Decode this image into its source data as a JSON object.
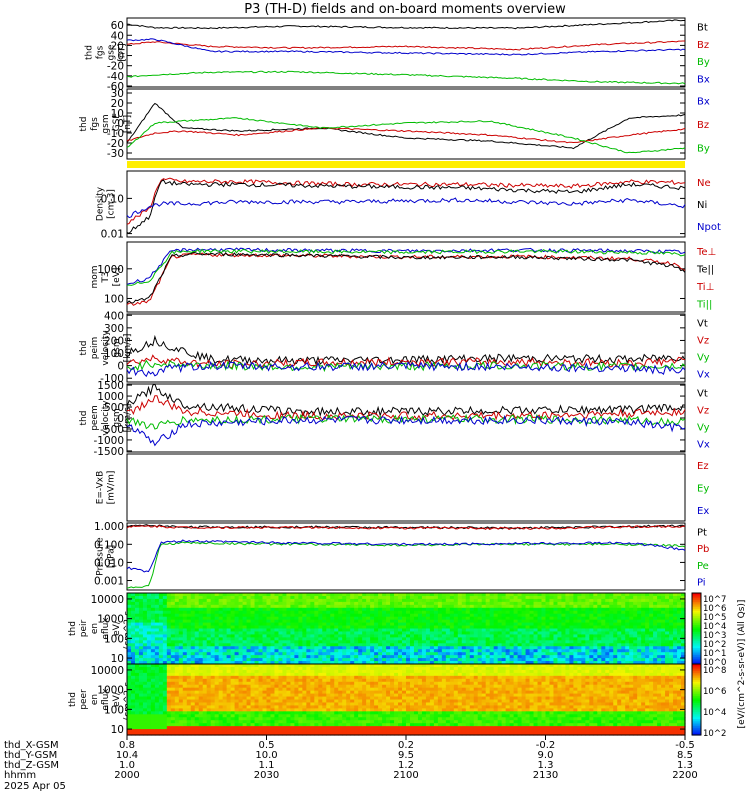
{
  "title": "P3 (TH-D) fields and on-board moments overview",
  "chart_data": {
    "type": "line",
    "title": "P3 (TH-D) fields and on-board moments overview",
    "panels": [
      {
        "id": "fgs_gse",
        "ylabel": [
          "thd",
          "fgs",
          "gse",
          "[nT]"
        ],
        "yticks": [
          "60",
          "40",
          "20",
          "0",
          "-20",
          "-40",
          "-60"
        ],
        "tick_values": [
          60,
          40,
          20,
          0,
          -20,
          -40,
          -60
        ],
        "ylim": [
          -62,
          74
        ],
        "scale": "linear",
        "series": [
          {
            "name": "Bt",
            "color": "#000000",
            "x": [
              0,
              0.05,
              0.15,
              0.3,
              0.5,
              0.7,
              0.85,
              1
            ],
            "y": [
              62,
              55,
              54,
              58,
              55,
              54,
              62,
              70
            ]
          },
          {
            "name": "Bz",
            "color": "#cc0000",
            "x": [
              0,
              0.05,
              0.15,
              0.3,
              0.5,
              0.7,
              0.85,
              1
            ],
            "y": [
              22,
              27,
              18,
              15,
              18,
              12,
              22,
              28
            ]
          },
          {
            "name": "By",
            "color": "#00bb00",
            "x": [
              0,
              0.05,
              0.15,
              0.3,
              0.5,
              0.7,
              0.85,
              1
            ],
            "y": [
              -42,
              -38,
              -33,
              -32,
              -38,
              -45,
              -52,
              -55
            ]
          },
          {
            "name": "Bx",
            "color": "#0000cc",
            "x": [
              0,
              0.05,
              0.15,
              0.3,
              0.5,
              0.7,
              0.85,
              1
            ],
            "y": [
              30,
              32,
              8,
              8,
              5,
              2,
              8,
              12
            ]
          }
        ]
      },
      {
        "id": "fgs_gsm",
        "ylabel": [
          "thd",
          "fgs",
          "gsm",
          "-GSE",
          "[nT]"
        ],
        "yticks": [
          "30",
          "20",
          "10",
          "0",
          "-10",
          "-20",
          "-30"
        ],
        "tick_values": [
          30,
          20,
          10,
          0,
          -10,
          -20,
          -30
        ],
        "ylim": [
          -36,
          34
        ],
        "scale": "linear",
        "series": [
          {
            "name": "Bx",
            "color": "#000000",
            "x": [
              0,
              0.05,
              0.1,
              0.2,
              0.35,
              0.5,
              0.65,
              0.8,
              0.9,
              1
            ],
            "y": [
              -20,
              20,
              -5,
              -8,
              -5,
              -15,
              -18,
              -25,
              5,
              8
            ]
          },
          {
            "name": "Bz",
            "color": "#cc0000",
            "x": [
              0,
              0.05,
              0.1,
              0.2,
              0.35,
              0.5,
              0.65,
              0.8,
              0.9,
              1
            ],
            "y": [
              -18,
              -10,
              -8,
              -12,
              -5,
              -8,
              -12,
              -20,
              -12,
              -6
            ]
          },
          {
            "name": "By",
            "color": "#00bb00",
            "x": [
              0,
              0.05,
              0.1,
              0.2,
              0.35,
              0.5,
              0.65,
              0.8,
              0.9,
              1
            ],
            "y": [
              -25,
              0,
              2,
              5,
              -5,
              0,
              2,
              -15,
              -30,
              -25
            ]
          }
        ]
      },
      {
        "id": "density",
        "ylabel": [
          "Density",
          "[cm-3]"
        ],
        "yticks": [
          "0.10",
          "0.01"
        ],
        "tick_values": [
          0.1,
          0.01
        ],
        "ylim": [
          0.008,
          0.6
        ],
        "scale": "log",
        "series": [
          {
            "name": "Ne",
            "color": "#cc0000",
            "x": [
              0,
              0.04,
              0.06,
              0.1,
              0.2,
              0.4,
              0.6,
              0.8,
              0.9,
              1
            ],
            "y": [
              0.02,
              0.05,
              0.35,
              0.3,
              0.3,
              0.25,
              0.25,
              0.22,
              0.3,
              0.28
            ]
          },
          {
            "name": "Ni",
            "color": "#000000",
            "x": [
              0,
              0.04,
              0.06,
              0.1,
              0.2,
              0.4,
              0.6,
              0.8,
              0.9,
              1
            ],
            "y": [
              0.01,
              0.03,
              0.3,
              0.25,
              0.25,
              0.22,
              0.2,
              0.15,
              0.25,
              0.2
            ]
          },
          {
            "name": "Npot",
            "color": "#0000cc",
            "x": [
              0,
              0.04,
              0.06,
              0.1,
              0.2,
              0.4,
              0.6,
              0.8,
              0.9,
              1
            ],
            "y": [
              0.03,
              0.06,
              0.07,
              0.07,
              0.08,
              0.08,
              0.09,
              0.07,
              0.09,
              0.06
            ]
          }
        ]
      },
      {
        "id": "temperature",
        "ylabel": [
          "mom",
          "T3",
          "[eV]"
        ],
        "yticks": [
          "1000",
          "100"
        ],
        "tick_values": [
          1000,
          100
        ],
        "ylim": [
          35,
          8000
        ],
        "scale": "log",
        "series": [
          {
            "name": "Te⊥",
            "color": "#cc0000",
            "x": [
              0,
              0.04,
              0.08,
              0.12,
              0.3,
              0.5,
              0.7,
              0.9,
              0.98,
              1
            ],
            "y": [
              60,
              80,
              2500,
              3000,
              2800,
              2500,
              2600,
              2200,
              1500,
              1000
            ]
          },
          {
            "name": "Te||",
            "color": "#000000",
            "x": [
              0,
              0.04,
              0.08,
              0.12,
              0.3,
              0.5,
              0.7,
              0.9,
              0.98,
              1
            ],
            "y": [
              70,
              100,
              2600,
              3200,
              2900,
              2400,
              2500,
              2000,
              1200,
              800
            ]
          },
          {
            "name": "Ti⊥",
            "color": "#0000cc",
            "x": [
              0,
              0.04,
              0.08,
              0.12,
              0.3,
              0.5,
              0.7,
              0.9,
              0.98,
              1
            ],
            "y": [
              300,
              500,
              4000,
              4500,
              4200,
              4000,
              4300,
              4000,
              3800,
              3500
            ]
          },
          {
            "name": "Ti||",
            "color": "#00bb00",
            "x": [
              0,
              0.04,
              0.08,
              0.12,
              0.3,
              0.5,
              0.7,
              0.9,
              0.98,
              1
            ],
            "y": [
              250,
              400,
              3500,
              4000,
              3800,
              3600,
              3900,
              3600,
              3200,
              3000
            ]
          }
        ]
      },
      {
        "id": "peim_velocity",
        "ylabel": [
          "thd",
          "peim",
          "velocity",
          "gsm",
          "[km/s]"
        ],
        "yticks": [
          "400",
          "300",
          "200",
          "100",
          "0",
          "-100"
        ],
        "tick_values": [
          400,
          300,
          200,
          100,
          0,
          -100
        ],
        "ylim": [
          -130,
          410
        ],
        "scale": "linear",
        "series": [
          {
            "name": "Vt",
            "color": "#000000",
            "x": [
              0,
              0.05,
              0.08,
              0.15,
              0.3,
              0.5,
              0.7,
              0.9,
              1
            ],
            "y": [
              100,
              200,
              150,
              50,
              40,
              50,
              60,
              50,
              70
            ]
          },
          {
            "name": "Vz",
            "color": "#cc0000",
            "x": [
              0,
              0.05,
              0.08,
              0.15,
              0.3,
              0.5,
              0.7,
              0.9,
              1
            ],
            "y": [
              20,
              60,
              40,
              10,
              20,
              30,
              30,
              20,
              40
            ]
          },
          {
            "name": "Vy",
            "color": "#00bb00",
            "x": [
              0,
              0.05,
              0.08,
              0.15,
              0.3,
              0.5,
              0.7,
              0.9,
              1
            ],
            "y": [
              -20,
              20,
              10,
              0,
              -10,
              -5,
              0,
              -10,
              0
            ]
          },
          {
            "name": "Vx",
            "color": "#0000cc",
            "x": [
              0,
              0.05,
              0.08,
              0.15,
              0.3,
              0.5,
              0.7,
              0.9,
              1
            ],
            "y": [
              -40,
              -60,
              -20,
              0,
              -10,
              -5,
              -10,
              -20,
              -50
            ]
          }
        ]
      },
      {
        "id": "peem_velocity",
        "ylabel": [
          "thd",
          "peem",
          "velocity",
          "gsm",
          "[km/s]"
        ],
        "yticks": [
          "1500",
          "1000",
          "500",
          "0",
          "-500",
          "-1000",
          "-1500"
        ],
        "tick_values": [
          1500,
          1000,
          500,
          0,
          -500,
          -1000,
          -1500
        ],
        "ylim": [
          -1550,
          1550
        ],
        "scale": "linear",
        "series": [
          {
            "name": "Vt",
            "color": "#000000",
            "x": [
              0,
              0.05,
              0.1,
              0.3,
              0.5,
              0.7,
              0.9,
              1
            ],
            "y": [
              600,
              1400,
              600,
              300,
              300,
              350,
              400,
              500
            ]
          },
          {
            "name": "Vz",
            "color": "#cc0000",
            "x": [
              0,
              0.05,
              0.1,
              0.3,
              0.5,
              0.7,
              0.9,
              1
            ],
            "y": [
              200,
              900,
              300,
              100,
              100,
              100,
              200,
              300
            ]
          },
          {
            "name": "Vy",
            "color": "#00bb00",
            "x": [
              0,
              0.05,
              0.1,
              0.3,
              0.5,
              0.7,
              0.9,
              1
            ],
            "y": [
              -100,
              -400,
              -100,
              -50,
              -50,
              -50,
              -100,
              -200
            ]
          },
          {
            "name": "Vx",
            "color": "#0000cc",
            "x": [
              0,
              0.05,
              0.1,
              0.3,
              0.5,
              0.7,
              0.9,
              1
            ],
            "y": [
              -200,
              -1200,
              -300,
              -100,
              -100,
              -100,
              -200,
              -500
            ]
          }
        ]
      },
      {
        "id": "efield",
        "ylabel": [
          "E=-VxB",
          "[mV/m]"
        ],
        "yticks": [],
        "tick_values": [],
        "ylim": [
          0,
          1
        ],
        "scale": "linear",
        "series": [
          {
            "name": "Ez",
            "color": "#cc0000",
            "x": [],
            "y": []
          },
          {
            "name": "Ey",
            "color": "#00bb00",
            "x": [],
            "y": []
          },
          {
            "name": "Ex",
            "color": "#0000cc",
            "x": [],
            "y": []
          }
        ]
      },
      {
        "id": "pressure",
        "ylabel": [
          "Pressure",
          "[nPa]"
        ],
        "yticks": [
          "1.000",
          "0.100",
          "0.010",
          "0.001"
        ],
        "tick_values": [
          1,
          0.1,
          0.01,
          0.001
        ],
        "ylim": [
          0.0003,
          1.5
        ],
        "scale": "log",
        "series": [
          {
            "name": "Pt",
            "color": "#000000",
            "x": [
              0,
              0.04,
              0.1,
              0.3,
              0.5,
              0.7,
              0.9,
              1
            ],
            "y": [
              1,
              1.1,
              0.9,
              0.9,
              0.85,
              0.8,
              0.95,
              1.1
            ]
          },
          {
            "name": "Pb",
            "color": "#cc0000",
            "x": [
              0,
              0.04,
              0.1,
              0.3,
              0.5,
              0.7,
              0.9,
              1
            ],
            "y": [
              0.9,
              1,
              0.85,
              0.85,
              0.8,
              0.75,
              0.9,
              1
            ]
          },
          {
            "name": "Pe",
            "color": "#00bb00",
            "x": [
              0,
              0.04,
              0.06,
              0.1,
              0.3,
              0.5,
              0.7,
              0.9,
              1
            ],
            "y": [
              0.0004,
              0.0005,
              0.1,
              0.12,
              0.1,
              0.09,
              0.1,
              0.1,
              0.08
            ]
          },
          {
            "name": "Pi",
            "color": "#0000cc",
            "x": [
              0,
              0.04,
              0.06,
              0.1,
              0.3,
              0.5,
              0.7,
              0.9,
              1
            ],
            "y": [
              0.005,
              0.003,
              0.12,
              0.15,
              0.12,
              0.1,
              0.11,
              0.12,
              0.05
            ]
          }
        ]
      },
      {
        "id": "peir_spec",
        "ylabel": [
          "thd",
          "peir",
          "en",
          "eflux",
          "eV/",
          "(cm^2-s-",
          "sr-eV)"
        ],
        "yticks": [
          "10000",
          "1000",
          "100",
          "10"
        ],
        "tick_values": [
          10000,
          1000,
          100,
          10
        ],
        "ylim": [
          5,
          20000
        ],
        "scale": "log",
        "colorbar_ticks": [
          "10^7",
          "10^6",
          "10^5",
          "10^4",
          "10^3",
          "10^2",
          "10^1",
          "10^0"
        ]
      },
      {
        "id": "peer_spec",
        "ylabel": [
          "thd",
          "peer",
          "en",
          "eflux",
          "eV/",
          "(cm^2-s-",
          "sr-eV)"
        ],
        "yticks": [
          "10000",
          "1000",
          "100",
          "10"
        ],
        "tick_values": [
          10000,
          1000,
          100,
          10
        ],
        "ylim": [
          5,
          20000
        ],
        "scale": "log",
        "colorbar_ticks": [
          "10^8",
          "10^6",
          "10^4",
          "10^2"
        ]
      }
    ],
    "right_labels": {
      "fgs_gse": [
        "Bt",
        "Bz",
        "By",
        "Bx"
      ],
      "fgs_gsm": [
        "Bx",
        "Bz",
        "By"
      ],
      "density": [
        "Ne",
        "Ni",
        "Npot"
      ],
      "temperature": [
        "Te⊥",
        "Te||",
        "Ti⊥",
        "Ti||"
      ],
      "peim_velocity": [
        "Vt",
        "Vz",
        "Vy",
        "Vx"
      ],
      "peem_velocity": [
        "Vt",
        "Vz",
        "Vy",
        "Vx"
      ],
      "efield": [
        "Ez",
        "Ey",
        "Ex"
      ],
      "pressure": [
        "Pt",
        "Pb",
        "Pe",
        "Pi"
      ]
    },
    "colorbar_label": "[eV/(cm^2-s-sr-eV)] (All Qs)]",
    "x_axis": {
      "rows": [
        {
          "label": "thd_X-GSM",
          "values": [
            "0.8",
            "0.5",
            "0.2",
            "-0.2",
            "-0.5"
          ]
        },
        {
          "label": "thd_Y-GSM",
          "values": [
            "10.4",
            "10.0",
            "9.5",
            "9.0",
            "8.5"
          ]
        },
        {
          "label": "thd_Z-GSM",
          "values": [
            "1.0",
            "1.1",
            "1.2",
            "1.3",
            "1.3"
          ]
        },
        {
          "label": "hhmm",
          "values": [
            "2000",
            "2030",
            "2100",
            "2130",
            "2200"
          ]
        }
      ],
      "date": "2025 Apr 05"
    }
  }
}
